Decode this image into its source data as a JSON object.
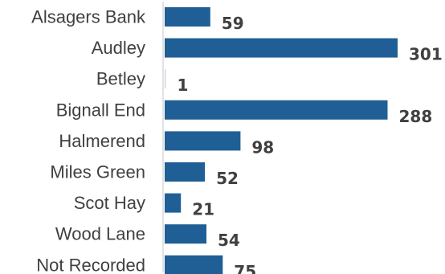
{
  "colors": {
    "bar": "#1f5f95",
    "axis": "#d9d9d9",
    "text": "#404040"
  },
  "chart_data": {
    "type": "bar",
    "orientation": "horizontal",
    "categories": [
      "Alsagers Bank",
      "Audley",
      "Betley",
      "Bignall End",
      "Halmerend",
      "Miles Green",
      "Scot Hay",
      "Wood Lane",
      "Not Recorded"
    ],
    "values": [
      59,
      301,
      1,
      288,
      98,
      52,
      21,
      54,
      75
    ],
    "title": "",
    "xlabel": "",
    "ylabel": "",
    "xlim": [
      0,
      301
    ],
    "data_labels": true,
    "grid": false,
    "legend": false
  }
}
